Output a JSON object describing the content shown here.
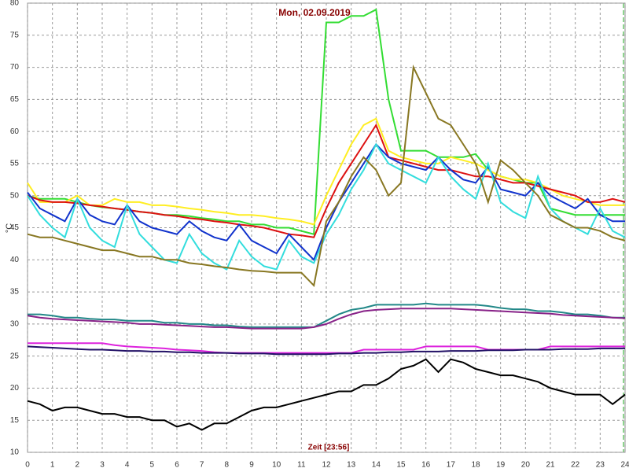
{
  "chart_data": {
    "type": "line",
    "title": "Mon, 02.09.2019",
    "ylabel": "°C",
    "xlabel": "Zeit [23:56]",
    "xlim": [
      0,
      24
    ],
    "ylim": [
      10,
      80
    ],
    "xticks": [
      0,
      1,
      2,
      3,
      4,
      5,
      6,
      7,
      8,
      9,
      10,
      11,
      12,
      13,
      14,
      15,
      16,
      17,
      18,
      19,
      20,
      21,
      22,
      23,
      24
    ],
    "yticks": [
      10,
      15,
      20,
      25,
      30,
      35,
      40,
      45,
      50,
      55,
      60,
      65,
      70,
      75,
      80
    ],
    "grid": true,
    "x": [
      0,
      0.5,
      1,
      1.5,
      2,
      2.5,
      3,
      3.5,
      4,
      4.5,
      5,
      5.5,
      6,
      6.5,
      7,
      7.5,
      8,
      8.5,
      9,
      9.5,
      10,
      10.5,
      11,
      11.5,
      12,
      12.5,
      13,
      13.5,
      14,
      14.5,
      15,
      15.5,
      16,
      16.5,
      17,
      17.5,
      18,
      18.5,
      19,
      19.5,
      20,
      20.5,
      21,
      21.5,
      22,
      22.5,
      23,
      23.5,
      24
    ],
    "series": [
      {
        "color": "#33dd33",
        "values": [
          50,
          49.5,
          49.5,
          49.5,
          49,
          48.5,
          48.2,
          48,
          47.8,
          47.5,
          47.3,
          47,
          47,
          46.8,
          46.5,
          46.3,
          46,
          46,
          45.5,
          45.5,
          45,
          45,
          44.5,
          44,
          77,
          77,
          78,
          78,
          79,
          65,
          57,
          57,
          57,
          56,
          56,
          56,
          56.5,
          54,
          53,
          52.5,
          52,
          52,
          48,
          47.5,
          47,
          47,
          47,
          47,
          47
        ]
      },
      {
        "color": "#ffee22",
        "values": [
          52,
          49,
          49,
          49,
          50,
          48.5,
          48.5,
          49.5,
          49,
          49,
          48.5,
          48.5,
          48.3,
          48,
          47.8,
          47.5,
          47.3,
          47,
          47,
          46.8,
          46.5,
          46.3,
          46,
          45.5,
          50,
          54,
          58,
          61,
          62,
          57,
          56,
          55.5,
          55,
          55,
          56,
          55.5,
          55,
          54,
          53,
          52.5,
          52.5,
          52,
          51,
          50,
          49.5,
          49,
          48.5,
          48.5,
          48.5
        ]
      },
      {
        "color": "#dd1111",
        "values": [
          50,
          49.3,
          49,
          49,
          48.8,
          48.5,
          48.3,
          48,
          47.8,
          47.5,
          47.3,
          47,
          46.8,
          46.5,
          46.3,
          46,
          45.8,
          45.5,
          45.3,
          45,
          44.5,
          44,
          43.8,
          43.5,
          48,
          52,
          55,
          58,
          61,
          56,
          55.5,
          55,
          54.5,
          54,
          54,
          53.5,
          53,
          53,
          52.5,
          52,
          52,
          51.5,
          51,
          50.5,
          50,
          49,
          49,
          49.5,
          49
        ]
      },
      {
        "color": "#1133cc",
        "values": [
          50.5,
          48,
          47,
          46,
          49.5,
          47,
          46,
          45.5,
          48.5,
          46,
          45,
          44.5,
          44,
          46,
          44.5,
          43.5,
          43,
          45.5,
          43,
          42,
          41,
          44,
          42,
          40,
          45,
          49,
          52,
          55,
          58,
          56,
          55,
          54.5,
          54,
          56,
          54,
          52.5,
          52,
          54.5,
          51,
          50.5,
          50,
          52,
          50,
          49,
          48,
          49.5,
          47,
          46,
          46
        ]
      },
      {
        "color": "#33dddd",
        "values": [
          50,
          47,
          45,
          43.5,
          49.5,
          45,
          43,
          42,
          48.5,
          44,
          42,
          40,
          39.5,
          44,
          41,
          39.5,
          38.5,
          43,
          40.5,
          39,
          38.5,
          43,
          40.5,
          39.5,
          44,
          47,
          51,
          54,
          58,
          55,
          54,
          53,
          52,
          56,
          53,
          51,
          49.5,
          55,
          49,
          47.5,
          46.5,
          53,
          48,
          46,
          45,
          44,
          48,
          44.5,
          43.5
        ]
      },
      {
        "color": "#887722",
        "values": [
          44,
          43.5,
          43.5,
          43,
          42.5,
          42,
          41.5,
          41.5,
          41,
          40.5,
          40.5,
          40,
          40,
          39.5,
          39.3,
          39,
          38.8,
          38.5,
          38.3,
          38.2,
          38,
          38,
          38,
          36,
          46,
          49,
          53,
          56,
          54,
          50,
          52,
          70,
          66,
          62,
          61,
          58,
          55,
          49,
          55.5,
          54,
          52,
          50,
          47,
          46,
          45,
          45,
          44.5,
          43.5,
          43
        ]
      },
      {
        "color": "#228888",
        "values": [
          31.5,
          31.5,
          31.3,
          31,
          31,
          30.8,
          30.7,
          30.7,
          30.5,
          30.5,
          30.5,
          30.2,
          30.2,
          30,
          30,
          29.8,
          29.8,
          29.6,
          29.5,
          29.5,
          29.5,
          29.5,
          29.5,
          29.5,
          30.5,
          31.5,
          32.2,
          32.5,
          33,
          33,
          33,
          33,
          33.2,
          33,
          33,
          33,
          33,
          32.8,
          32.5,
          32.3,
          32.3,
          32,
          32,
          31.8,
          31.5,
          31.5,
          31.3,
          31,
          31
        ]
      },
      {
        "color": "#882288",
        "values": [
          31.3,
          31,
          30.8,
          30.7,
          30.6,
          30.5,
          30.4,
          30.3,
          30.2,
          30,
          30,
          29.9,
          29.8,
          29.7,
          29.6,
          29.5,
          29.5,
          29.4,
          29.3,
          29.3,
          29.3,
          29.3,
          29.3,
          29.5,
          30,
          30.8,
          31.5,
          32,
          32.2,
          32.3,
          32.4,
          32.4,
          32.4,
          32.4,
          32.4,
          32.3,
          32.2,
          32.1,
          32,
          31.9,
          31.8,
          31.7,
          31.6,
          31.4,
          31.3,
          31.2,
          31.1,
          31,
          30.9
        ]
      },
      {
        "color": "#dd22dd",
        "values": [
          27,
          27,
          27,
          27,
          27,
          27,
          27,
          26.7,
          26.5,
          26.4,
          26.3,
          26.2,
          26,
          25.9,
          25.8,
          25.6,
          25.5,
          25.5,
          25.5,
          25.5,
          25.5,
          25.5,
          25.5,
          25.5,
          25.5,
          25.5,
          25.5,
          26,
          26,
          26,
          26,
          26,
          26.5,
          26.5,
          26.5,
          26.5,
          26.5,
          26,
          26,
          26,
          26,
          26,
          26.5,
          26.5,
          26.5,
          26.5,
          26.5,
          26.5,
          26.5
        ]
      },
      {
        "color": "#221166",
        "values": [
          26.5,
          26.4,
          26.3,
          26.2,
          26.1,
          26,
          26,
          25.9,
          25.8,
          25.8,
          25.7,
          25.7,
          25.6,
          25.6,
          25.5,
          25.5,
          25.5,
          25.4,
          25.4,
          25.4,
          25.3,
          25.3,
          25.3,
          25.3,
          25.3,
          25.4,
          25.4,
          25.5,
          25.5,
          25.6,
          25.6,
          25.7,
          25.7,
          25.7,
          25.8,
          25.8,
          25.8,
          25.9,
          25.9,
          25.9,
          26,
          26,
          26,
          26.1,
          26.1,
          26.1,
          26.2,
          26.2,
          26.2
        ]
      },
      {
        "color": "#000000",
        "values": [
          18,
          17.5,
          16.5,
          17,
          17,
          16.5,
          16,
          16,
          15.5,
          15.5,
          15,
          15,
          14,
          14.5,
          13.5,
          14.5,
          14.5,
          15.5,
          16.5,
          17,
          17,
          17.5,
          18,
          18.5,
          19,
          19.5,
          19.5,
          20.5,
          20.5,
          21.5,
          23,
          23.5,
          24.5,
          22.5,
          24.5,
          24,
          23,
          22.5,
          22,
          22,
          21.5,
          21,
          20,
          19.5,
          19,
          19,
          19,
          17.5,
          19
        ]
      }
    ]
  }
}
